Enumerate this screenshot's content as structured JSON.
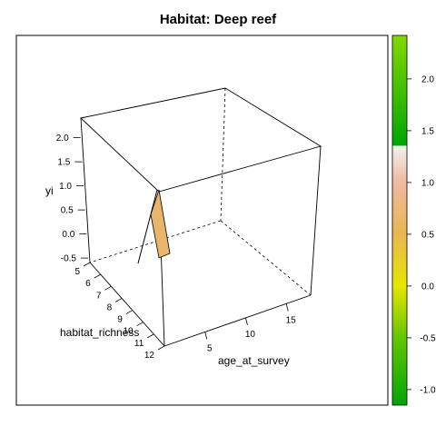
{
  "chart_data": {
    "type": "surface3d",
    "title": "Habitat: Deep reef",
    "xlabel": "age_at_survey",
    "ylabel": "habitat_richness",
    "zlabel": "yi",
    "x_ticks": [
      "5",
      "10",
      "15"
    ],
    "y_ticks": [
      "5",
      "6",
      "7",
      "8",
      "9",
      "10",
      "11",
      "12"
    ],
    "z_ticks": [
      "2.0",
      "1.5",
      "1.0",
      "0.5",
      "0.0",
      "-0.5"
    ],
    "xlim": [
      0,
      18
    ],
    "ylim": [
      5,
      12
    ],
    "zlim": [
      -0.8,
      2.2
    ],
    "surface": {
      "description_points": [
        {
          "age_at_survey": 0,
          "habitat_richness": 9.5,
          "yi": 0.2
        },
        {
          "age_at_survey": 0,
          "habitat_richness": 10.5,
          "yi": -0.7
        },
        {
          "age_at_survey": 0,
          "habitat_richness": 12,
          "yi": 1.7
        }
      ],
      "fill": "#E8B56A"
    },
    "colorbar": {
      "ticks": [
        "2.0",
        "1.5",
        "1.0",
        "0.5",
        "0.0",
        "-0.5",
        "-1.0"
      ],
      "range": [
        -1.15,
        2.42
      ],
      "stops": [
        {
          "value": -1.15,
          "color": "#00A600"
        },
        {
          "value": -0.5,
          "color": "#63C600"
        },
        {
          "value": 0.0,
          "color": "#E6E600"
        },
        {
          "value": 0.5,
          "color": "#EAB64E"
        },
        {
          "value": 1.0,
          "color": "#EEB99F"
        },
        {
          "value": 1.35,
          "color": "#F2F2F2"
        },
        {
          "value": 1.36,
          "color": "#00A600"
        },
        {
          "value": 2.42,
          "color": "#84D800"
        }
      ]
    }
  }
}
